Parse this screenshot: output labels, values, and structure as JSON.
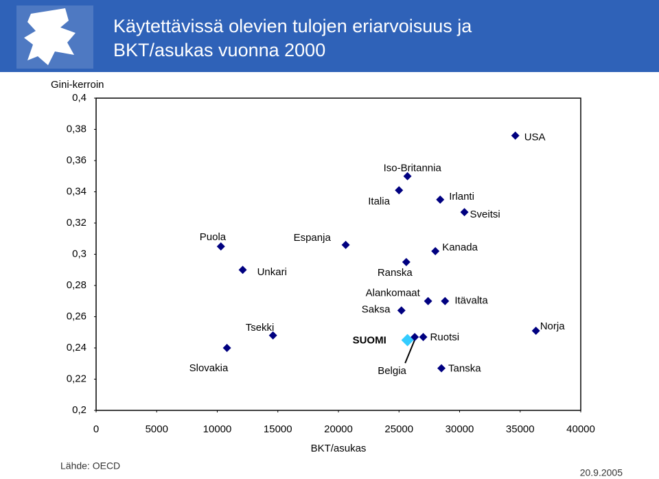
{
  "chart_data": {
    "type": "scatter",
    "title_lines": [
      "Käytettävissä olevien tulojen eriarvoisuus ja",
      "BKT/asukas vuonna 2000"
    ],
    "y_label": "Gini-kerroin",
    "x_label": "BKT/asukas",
    "source": "Lähde: OECD",
    "date": "20.9.2005",
    "labels": [
      "Slovakia",
      "Puola",
      "Unkari",
      "Tsekki",
      "Espanja",
      "Italia",
      "Iso-Britannia",
      "Ranska",
      "Saksa",
      "Alankomaat",
      "SUOMI",
      "Belgia",
      "Ruotsi",
      "Irlanti",
      "Sveitsi",
      "Kanada",
      "Itävalta",
      "Tanska",
      "USA",
      "Norja"
    ],
    "x": [
      10800,
      10300,
      12100,
      14600,
      20600,
      25000,
      25700,
      25600,
      25200,
      27400,
      25700,
      26300,
      27000,
      28400,
      30400,
      28000,
      28800,
      28500,
      34600,
      36300
    ],
    "values": [
      0.24,
      0.305,
      0.29,
      0.248,
      0.306,
      0.341,
      0.35,
      0.295,
      0.264,
      0.27,
      0.245,
      0.247,
      0.247,
      0.335,
      0.327,
      0.302,
      0.27,
      0.227,
      0.376,
      0.251
    ],
    "colors": [
      "#000080",
      "#000080",
      "#000080",
      "#000080",
      "#000080",
      "#000080",
      "#000080",
      "#000080",
      "#000080",
      "#000080",
      "#33ccff",
      "#000080",
      "#000080",
      "#000080",
      "#000080",
      "#000080",
      "#000080",
      "#000080",
      "#000080",
      "#000080"
    ],
    "xlim": [
      0,
      40000
    ],
    "ylim": [
      0.2,
      0.4
    ],
    "xticks": [
      0,
      5000,
      10000,
      15000,
      20000,
      25000,
      30000,
      35000,
      40000
    ],
    "yticks": [
      {
        "value": 0.2,
        "label": "0,2"
      },
      {
        "value": 0.22,
        "label": "0,22"
      },
      {
        "value": 0.24,
        "label": "0,24"
      },
      {
        "value": 0.26,
        "label": "0,26"
      },
      {
        "value": 0.28,
        "label": "0,28"
      },
      {
        "value": 0.3,
        "label": "0,3"
      },
      {
        "value": 0.32,
        "label": "0,32"
      },
      {
        "value": 0.34,
        "label": "0,34"
      },
      {
        "value": 0.36,
        "label": "0,36"
      },
      {
        "value": 0.38,
        "label": "0,38"
      },
      {
        "value": 0.4,
        "label": "0,4"
      }
    ]
  }
}
